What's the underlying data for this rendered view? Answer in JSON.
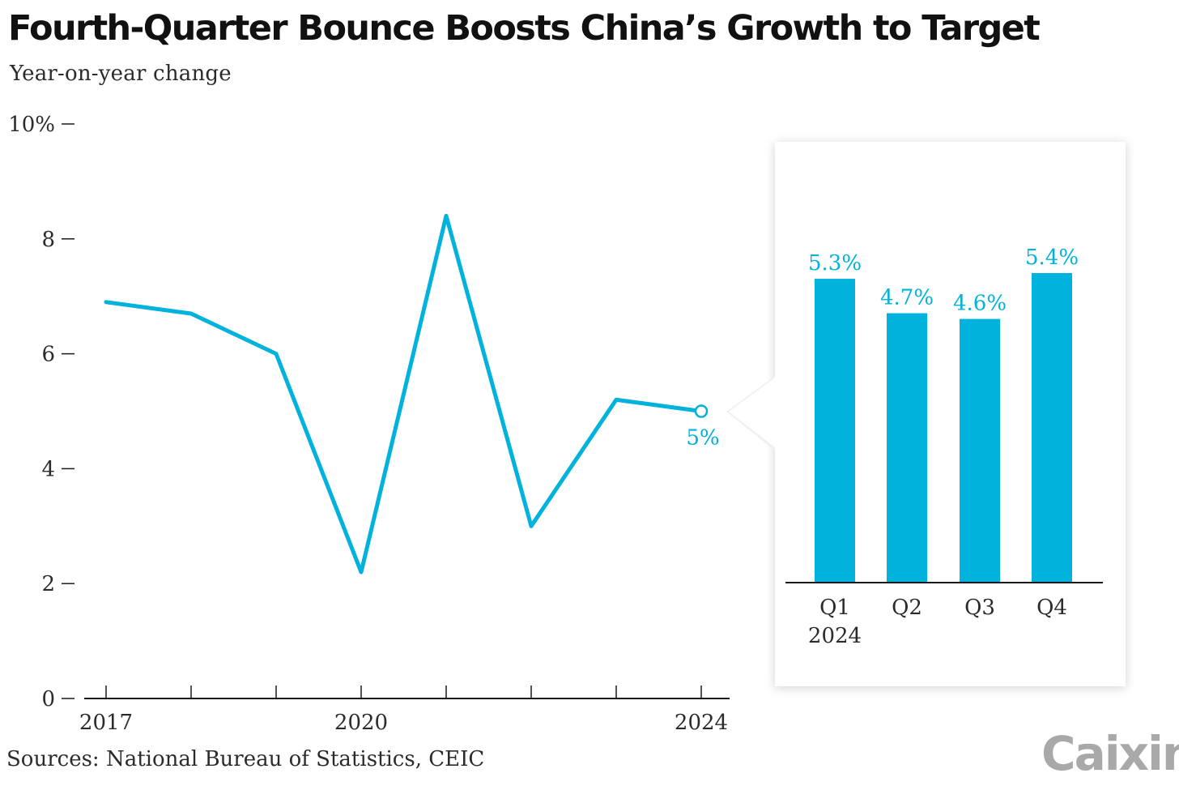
{
  "title": "Fourth-Quarter Bounce Boosts China’s Growth to Target",
  "subtitle": "Year-on-year change",
  "source": "Sources: National Bureau of Statistics, CEIC",
  "logo_text": "Caixin",
  "colors": {
    "accent": "#00b2dc",
    "axis": "#1a1a1a",
    "logo": "#a9a9a9"
  },
  "chart_data": [
    {
      "type": "line",
      "x": [
        2017,
        2018,
        2019,
        2020,
        2021,
        2022,
        2023,
        2024
      ],
      "series": [
        {
          "values": [
            6.9,
            6.7,
            6.0,
            2.2,
            8.4,
            3.0,
            5.2,
            5.0
          ]
        }
      ],
      "ylim": [
        0,
        10
      ],
      "xlim": [
        2017,
        2024
      ],
      "y_ticks": [
        {
          "value": 0,
          "label": "0"
        },
        {
          "value": 2,
          "label": "2"
        },
        {
          "value": 4,
          "label": "4"
        },
        {
          "value": 6,
          "label": "6"
        },
        {
          "value": 8,
          "label": "8"
        },
        {
          "value": 10,
          "label": "10%"
        }
      ],
      "x_ticks": [
        2017,
        2018,
        2019,
        2020,
        2021,
        2022,
        2023,
        2024
      ],
      "x_tick_labels": [
        {
          "value": 2017,
          "label": "2017"
        },
        {
          "value": 2020,
          "label": "2020"
        },
        {
          "value": 2024,
          "label": "2024"
        }
      ],
      "annotation": {
        "x": 2024,
        "value": 5.0,
        "label": "5%"
      },
      "grid": false
    },
    {
      "type": "bar",
      "categories": [
        "Q1",
        "Q2",
        "Q3",
        "Q4"
      ],
      "category_sublabel": "2024",
      "values": [
        5.3,
        4.7,
        4.6,
        5.4
      ],
      "data_labels": [
        "5.3%",
        "4.7%",
        "4.6%",
        "5.4%"
      ],
      "ylim": [
        0,
        5.4
      ],
      "grid": false
    }
  ]
}
